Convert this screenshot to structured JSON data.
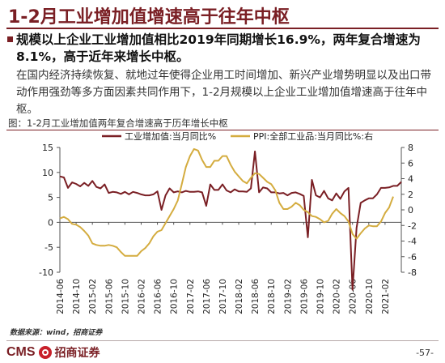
{
  "slide_title": "1-2月工业增加值增速高于往年中枢",
  "headline": "规模以上企业工业增加值相比2019年同期增长16.9%，两年复合增速为8.1%，高于近年来增长中枢。",
  "body": "在国内经济持续恢复、就地过年使得企业用工时间增加、新兴产业增势明显以及出口带动作用强劲等多方面因素共同作用下，1-2月规模以上企业工业增加值增速高于往年中枢。",
  "figure_caption": "图：1-2月工业增加值两年复合增速高于历年增长中枢",
  "source": "数据来源：wind，招商证券",
  "footer": {
    "brand": "CMS",
    "brand_cn": "招商证券",
    "page": "-57-"
  },
  "colors": {
    "accent": "#7a1f24",
    "ip_line": "#7a1f24",
    "ppi_line": "#d4ac3f",
    "logo_seal": "#c8202a"
  },
  "chart_data": {
    "type": "line",
    "title": "",
    "legend_position": "top",
    "grid": false,
    "x_tick_labels": [
      "2014-06",
      "2014-10",
      "2015-02",
      "2015-06",
      "2015-10",
      "2016-02",
      "2016-06",
      "2016-10",
      "2017-02",
      "2017-06",
      "2017-10",
      "2018-02",
      "2018-06",
      "2018-10",
      "2019-02",
      "2019-06",
      "2019-10",
      "2020-02",
      "2020-06",
      "2020-10",
      "2021-02"
    ],
    "x_start": "2014-06",
    "y_left": {
      "range": [
        -10,
        15
      ],
      "ticks": [
        15,
        10,
        5,
        0,
        -5,
        -10
      ]
    },
    "y_right": {
      "range": [
        -8,
        8
      ],
      "ticks": [
        8,
        6,
        4,
        2,
        0,
        -2,
        -4,
        -6,
        -8
      ]
    },
    "series": [
      {
        "name": "工业增加值:当月同比%",
        "axis": "left",
        "values": [
          9.2,
          9.0,
          6.9,
          8.0,
          7.7,
          7.2,
          7.9,
          7.3,
          8.3,
          7.1,
          6.8,
          7.6,
          5.9,
          6.1,
          6.0,
          5.7,
          6.1,
          5.6,
          6.1,
          5.9,
          5.6,
          5.4,
          5.4,
          5.6,
          6.2,
          2.5,
          5.4,
          6.8,
          6.0,
          6.2,
          6.0,
          6.3,
          6.1,
          6.1,
          6.2,
          6.0,
          3.3,
          7.6,
          6.5,
          6.5,
          7.6,
          6.4,
          6.0,
          6.6,
          6.2,
          6.2,
          6.1,
          6.8,
          14.2,
          6.0,
          7.0,
          6.8,
          6.0,
          6.0,
          5.8,
          5.9,
          5.4,
          5.9,
          6.0,
          5.7,
          5.3,
          -3.0,
          8.5,
          5.4,
          5.0,
          6.3,
          4.8,
          4.4,
          5.8,
          4.7,
          6.2,
          6.9,
          -13.5,
          -1.1,
          3.9,
          4.4,
          4.8,
          4.8,
          5.6,
          6.9,
          6.9,
          7.0,
          7.3,
          7.3,
          8.1
        ],
        "style": "line",
        "color": "#7a1f24"
      },
      {
        "name": "PPI:全部工业品:当月同比%:右",
        "axis": "right",
        "values": [
          -1.1,
          -0.9,
          -1.2,
          -1.8,
          -1.9,
          -2.2,
          -2.7,
          -3.3,
          -4.3,
          -4.5,
          -4.6,
          -4.6,
          -4.5,
          -4.6,
          -4.8,
          -5.4,
          -5.9,
          -5.9,
          -5.9,
          -5.9,
          -5.3,
          -4.9,
          -4.3,
          -3.4,
          -2.8,
          -2.6,
          -1.7,
          -0.8,
          0.1,
          1.2,
          3.3,
          5.5,
          6.9,
          7.8,
          7.6,
          6.4,
          5.5,
          5.5,
          6.3,
          6.3,
          6.9,
          6.9,
          5.8,
          4.9,
          4.3,
          3.7,
          3.4,
          4.1,
          4.7,
          4.6,
          4.1,
          3.6,
          3.3,
          2.5,
          0.9,
          0.1,
          0.1,
          0.4,
          0.9,
          0.6,
          0.0,
          -0.3,
          -0.8,
          -0.9,
          -1.2,
          -1.6,
          -1.4,
          -0.5,
          0.1,
          -0.4,
          -0.8,
          -1.5,
          -3.1,
          -3.7,
          -3.0,
          -2.4,
          -2.0,
          -2.1,
          -2.1,
          -1.5,
          -0.4,
          0.3,
          1.7
        ]
      }
    ]
  }
}
